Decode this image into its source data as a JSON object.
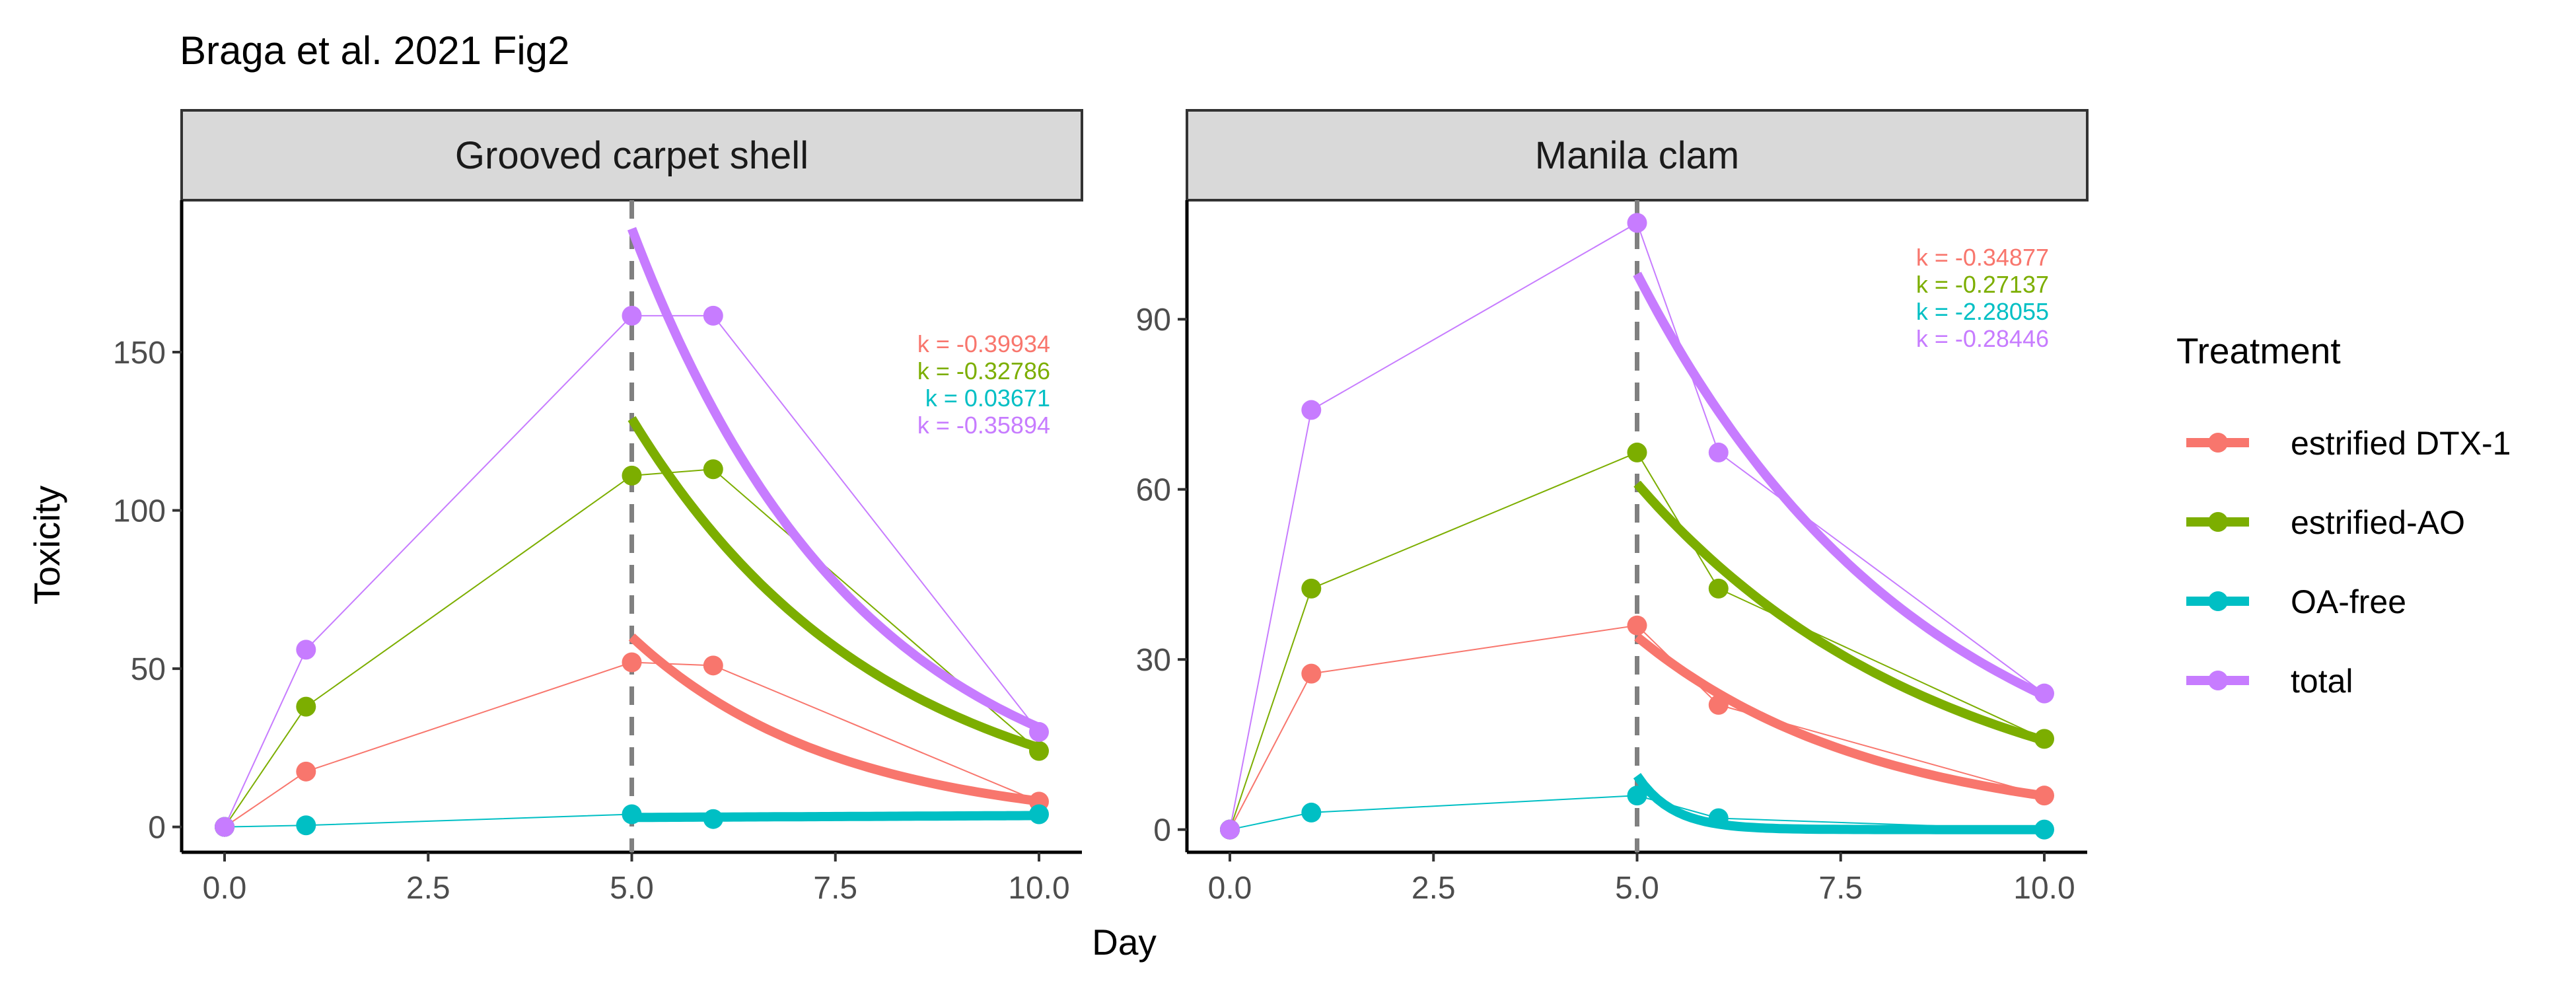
{
  "title": "Braga et al. 2021 Fig2",
  "xlabel": "Day",
  "ylabel": "Toxicity",
  "legend": {
    "title": "Treatment",
    "entries": [
      {
        "name": "estrified DTX-1",
        "color": "#F8766D"
      },
      {
        "name": "estrified-AO",
        "color": "#7CAE00"
      },
      {
        "name": "OA-free",
        "color": "#00BFC4"
      },
      {
        "name": "total",
        "color": "#C77CFF"
      }
    ]
  },
  "chart_data": [
    {
      "type": "line",
      "panel": "Grooved carpet shell",
      "xlim": [
        0,
        10
      ],
      "ylim": [
        -8,
        198
      ],
      "x_ticks": [
        0,
        2.5,
        5,
        7.5,
        10
      ],
      "x_tick_labels": [
        "0.0",
        "2.5",
        "5.0",
        "7.5",
        "10.0"
      ],
      "y_ticks": [
        0,
        50,
        100,
        150
      ],
      "y_tick_labels": [
        "0",
        "50",
        "100",
        "150"
      ],
      "vline_x": 5,
      "x": [
        0,
        1,
        5,
        6,
        10
      ],
      "series": [
        {
          "name": "estrified DTX-1",
          "values": [
            0,
            17.5,
            52,
            51,
            8
          ],
          "fit_start": 60,
          "k": -0.39934,
          "k_label": "k = -0.39934"
        },
        {
          "name": "estrified-AO",
          "values": [
            0,
            38,
            111,
            113,
            24
          ],
          "fit_start": 129,
          "k": -0.32786,
          "k_label": "k = -0.32786"
        },
        {
          "name": "OA-free",
          "values": [
            0,
            0.5,
            4,
            2.5,
            4
          ],
          "fit_start": 3,
          "k": 0.03671,
          "k_label": "k = 0.03671"
        },
        {
          "name": "total",
          "values": [
            0,
            56,
            161.5,
            161.5,
            30
          ],
          "fit_start": 189,
          "k": -0.35894,
          "k_label": "k = -0.35894"
        }
      ]
    },
    {
      "type": "line",
      "panel": "Manila clam",
      "xlim": [
        0,
        10
      ],
      "ylim": [
        -4,
        111
      ],
      "x_ticks": [
        0,
        2.5,
        5,
        7.5,
        10
      ],
      "x_tick_labels": [
        "0.0",
        "2.5",
        "5.0",
        "7.5",
        "10.0"
      ],
      "y_ticks": [
        0,
        30,
        60,
        90
      ],
      "y_tick_labels": [
        "0",
        "30",
        "60",
        "90"
      ],
      "vline_x": 5,
      "x": [
        0,
        1,
        5,
        6,
        10
      ],
      "series": [
        {
          "name": "estrified DTX-1",
          "values": [
            0,
            27.5,
            36,
            22,
            6
          ],
          "fit_start": 34,
          "k": -0.34877,
          "k_label": "k = -0.34877"
        },
        {
          "name": "estrified-AO",
          "values": [
            0,
            42.5,
            66.5,
            42.5,
            16
          ],
          "fit_start": 61,
          "k": -0.27137,
          "k_label": "k = -0.27137"
        },
        {
          "name": "OA-free",
          "values": [
            0,
            3,
            6,
            2,
            0
          ],
          "fit_start": 9.5,
          "k": -2.28055,
          "k_label": "k = -2.28055"
        },
        {
          "name": "total",
          "values": [
            0,
            74,
            107,
            66.5,
            24
          ],
          "fit_start": 98,
          "k": -0.28446,
          "k_label": "k = -0.28446"
        }
      ]
    }
  ]
}
